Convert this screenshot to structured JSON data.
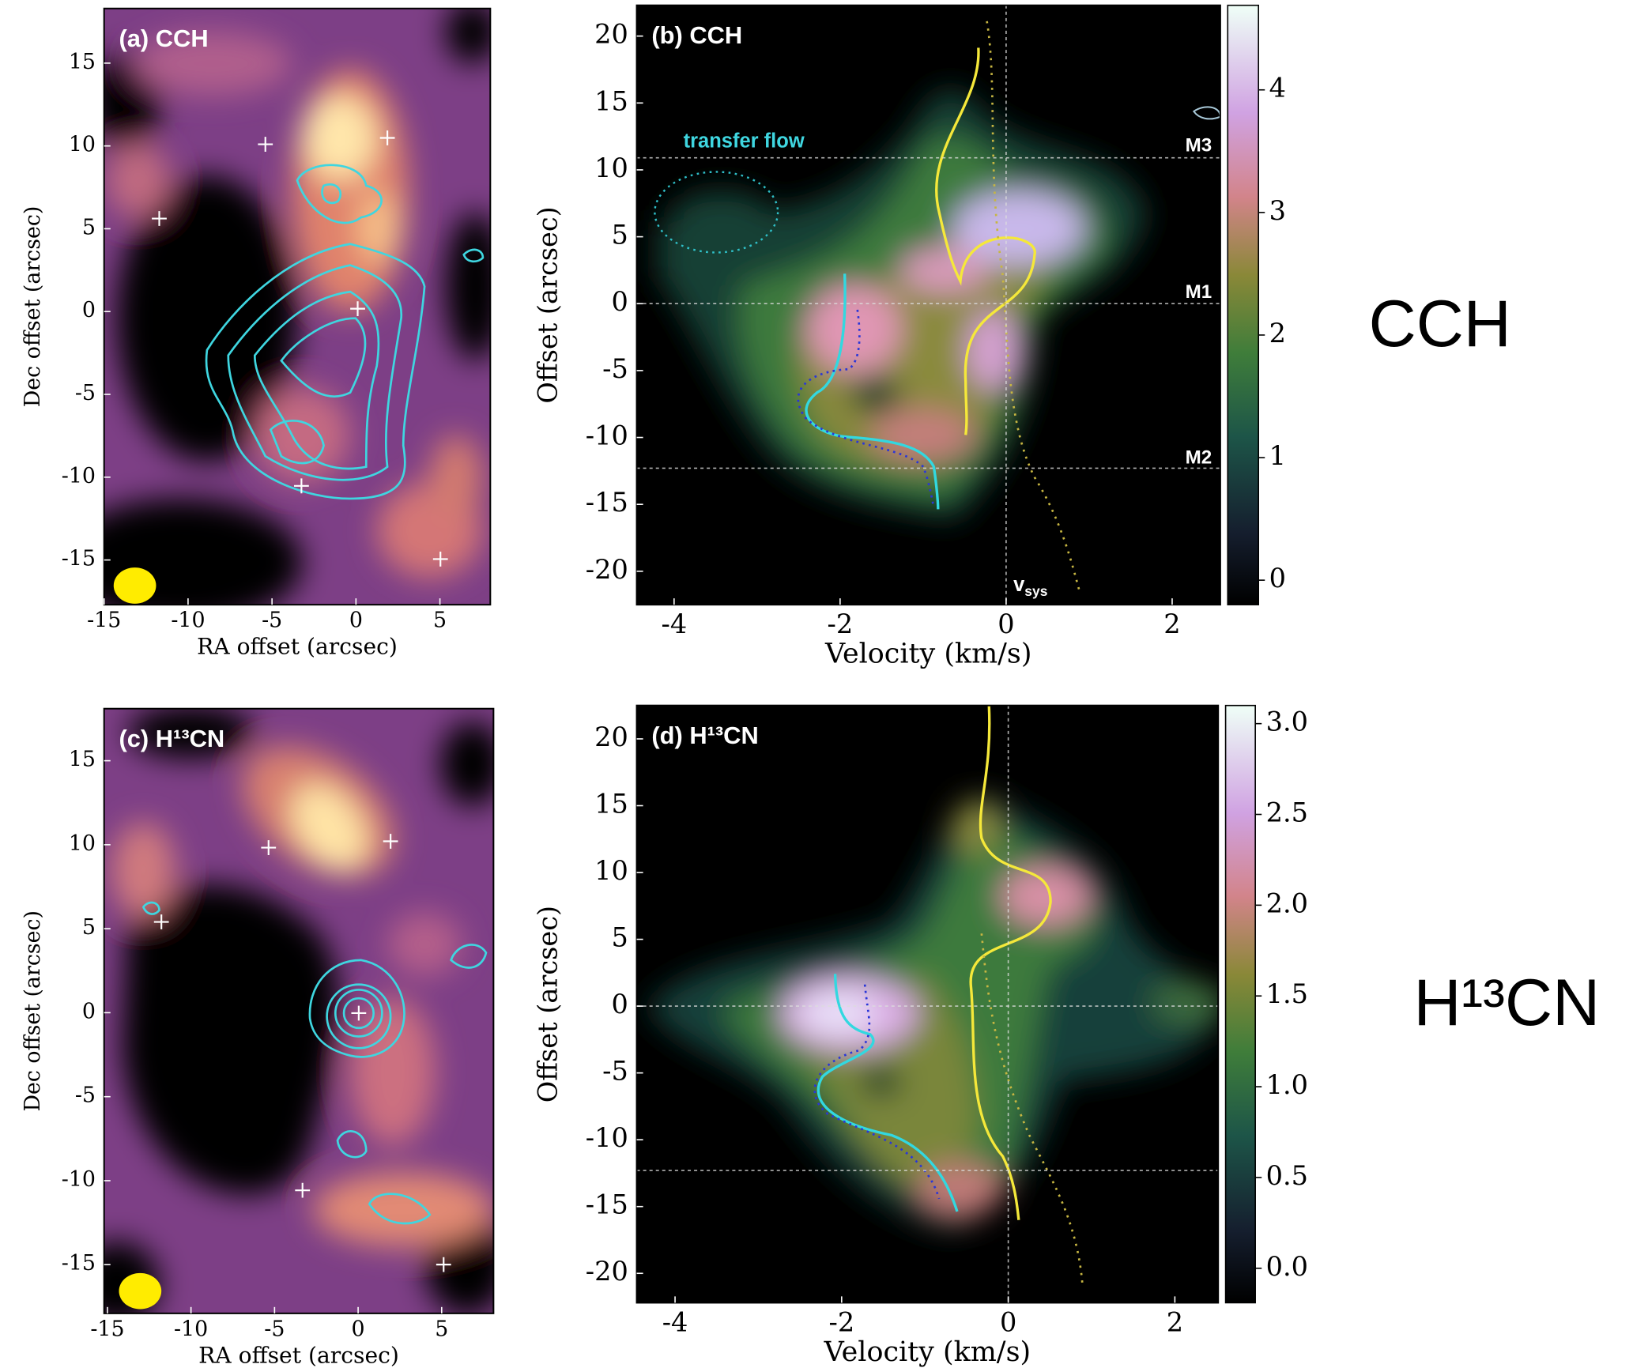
{
  "chart_data": [
    {
      "type": "heatmap",
      "title": "(a) CCH",
      "xlabel": "RA offset (arcsec)",
      "ylabel": "Dec offset (arcsec)",
      "xlim": [
        -15,
        8
      ],
      "ylim": [
        -17.7,
        18.3
      ],
      "xticks": [
        -15,
        -10,
        -5,
        0,
        5
      ],
      "yticks": [
        -15,
        -10,
        -5,
        0,
        5,
        10,
        15
      ]
    },
    {
      "type": "heatmap",
      "title": "(b) CCH",
      "xlabel": "Velocity (km/s)",
      "ylabel": "Offset (arcsec)",
      "xlim": [
        -4.45,
        2.58
      ],
      "ylim": [
        -22.5,
        22.3
      ],
      "xticks": [
        -4,
        -2,
        0,
        2
      ],
      "yticks": [
        -20,
        -15,
        -10,
        -5,
        0,
        5,
        10,
        15,
        20
      ],
      "hlines": [
        10.9,
        0,
        -12.3
      ],
      "vline": 0,
      "colorbar": {
        "lim": [
          -0.2,
          4.69
        ],
        "ticks": [
          0,
          1,
          2,
          3,
          4
        ]
      },
      "annotations": [
        "transfer flow",
        "M3",
        "M1",
        "M2"
      ],
      "vsys": {
        "text": "v",
        "sub": "sys"
      }
    },
    {
      "type": "heatmap",
      "title": "(c) H¹³CN",
      "xlabel": "RA offset (arcsec)",
      "ylabel": "Dec offset (arcsec)",
      "xlim": [
        -15.2,
        8.1
      ],
      "ylim": [
        -17.9,
        18.1
      ],
      "xticks": [
        -15,
        -10,
        -5,
        0,
        5
      ],
      "yticks": [
        -15,
        -10,
        -5,
        0,
        5,
        10,
        15
      ]
    },
    {
      "type": "heatmap",
      "title": "(d) H¹³CN",
      "xlabel": "Velocity (km/s)",
      "ylabel": "Offset (arcsec)",
      "xlim": [
        -4.46,
        2.52
      ],
      "ylim": [
        -22.2,
        22.5
      ],
      "xticks": [
        -4,
        -2,
        0,
        2
      ],
      "yticks": [
        -20,
        -15,
        -10,
        -5,
        0,
        5,
        10,
        15,
        20
      ],
      "hlines": [
        0,
        -12.3
      ],
      "vline": 0,
      "colorbar": {
        "lim": [
          -0.19,
          3.1
        ],
        "ticks": [
          {
            "value": 0,
            "label": "0.0"
          },
          0.5,
          {
            "value": 1,
            "label": "1.0"
          },
          1.5,
          {
            "value": 2,
            "label": "2.0"
          },
          2.5,
          {
            "value": 3,
            "label": "3.0"
          }
        ]
      }
    }
  ],
  "row_labels": [
    "CCH",
    "H¹³CN"
  ]
}
